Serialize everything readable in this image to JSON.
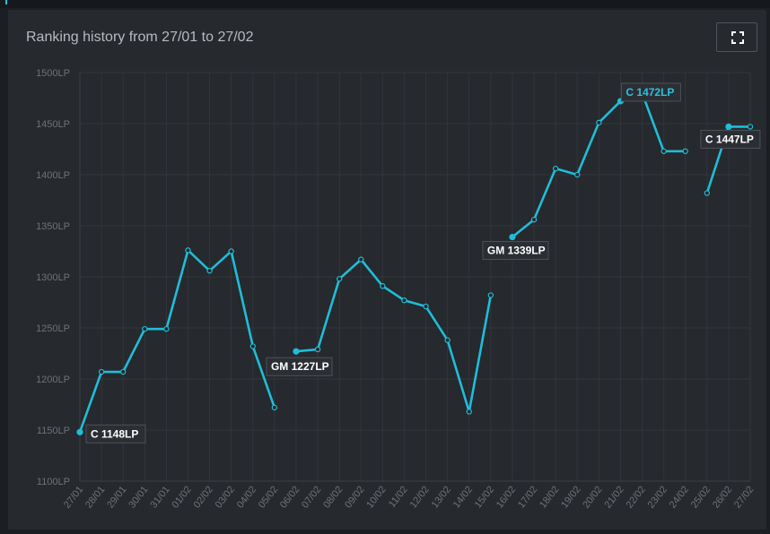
{
  "title": "Ranking history from 27/01 to 27/02",
  "fullscreen_icon": "expand-icon",
  "colors": {
    "line": "#1fbdd8",
    "background": "#26292e",
    "grid": "#32363c",
    "text": "#6e7378"
  },
  "chart_data": {
    "type": "line",
    "title": "Ranking history from 27/01 to 27/02",
    "categories": [
      "27/01",
      "28/01",
      "29/01",
      "30/01",
      "31/01",
      "01/02",
      "02/02",
      "03/02",
      "04/02",
      "05/02",
      "06/02",
      "07/02",
      "08/02",
      "09/02",
      "10/02",
      "11/02",
      "12/02",
      "13/02",
      "14/02",
      "15/02",
      "16/02",
      "17/02",
      "18/02",
      "19/02",
      "20/02",
      "21/02",
      "22/02",
      "23/02",
      "24/02",
      "25/02",
      "26/02",
      "27/02"
    ],
    "series": [
      {
        "values": [
          1148,
          1207,
          1207,
          1249,
          1249,
          1326,
          1306,
          1325,
          1232,
          1172,
          1227,
          1229,
          1298,
          1317,
          1291,
          1277,
          1271,
          1238,
          1168,
          1282,
          1339,
          1356,
          1406,
          1400,
          1451,
          1472,
          1480,
          1423,
          1423,
          1382,
          1447,
          1447
        ]
      }
    ],
    "ylim": [
      1100,
      1500
    ],
    "yticks": [
      1100,
      1150,
      1200,
      1250,
      1300,
      1350,
      1400,
      1450,
      1500
    ],
    "ytick_suffix": "LP",
    "grid": true,
    "segment_breaks": [
      9,
      19,
      28
    ],
    "annotations": [
      {
        "index": 0,
        "text": "C 1148LP"
      },
      {
        "index": 10,
        "text": "GM 1227LP"
      },
      {
        "index": 20,
        "text": "GM 1339LP"
      },
      {
        "index": 25,
        "text": "C 1472LP"
      },
      {
        "index": 30,
        "text": "C 1447LP"
      }
    ]
  }
}
